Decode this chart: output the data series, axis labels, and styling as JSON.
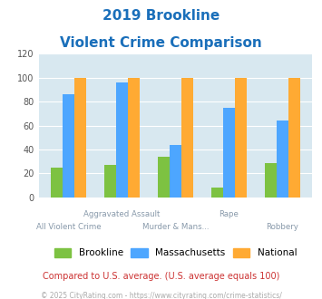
{
  "title_line1": "2019 Brookline",
  "title_line2": "Violent Crime Comparison",
  "brookline": [
    25,
    27,
    34,
    8,
    29
  ],
  "massachusetts": [
    86,
    96,
    44,
    75,
    64
  ],
  "national": [
    100,
    100,
    100,
    100,
    100
  ],
  "top_labels": [
    "",
    "Aggravated Assault",
    "",
    "Rape",
    ""
  ],
  "bot_labels": [
    "All Violent Crime",
    "",
    "Murder & Mans...",
    "",
    "Robbery"
  ],
  "colors": {
    "brookline": "#7dc242",
    "massachusetts": "#4da6ff",
    "national": "#ffaa33"
  },
  "ylim": [
    0,
    120
  ],
  "yticks": [
    0,
    20,
    40,
    60,
    80,
    100,
    120
  ],
  "title_color": "#1a6fba",
  "bg_color": "#d8e8f0",
  "label_color": "#8899aa",
  "footer_text": "Compared to U.S. average. (U.S. average equals 100)",
  "copyright_text": "© 2025 CityRating.com - https://www.cityrating.com/crime-statistics/",
  "footer_color": "#cc3333",
  "copyright_color": "#aaaaaa",
  "legend_labels": [
    "Brookline",
    "Massachusetts",
    "National"
  ]
}
